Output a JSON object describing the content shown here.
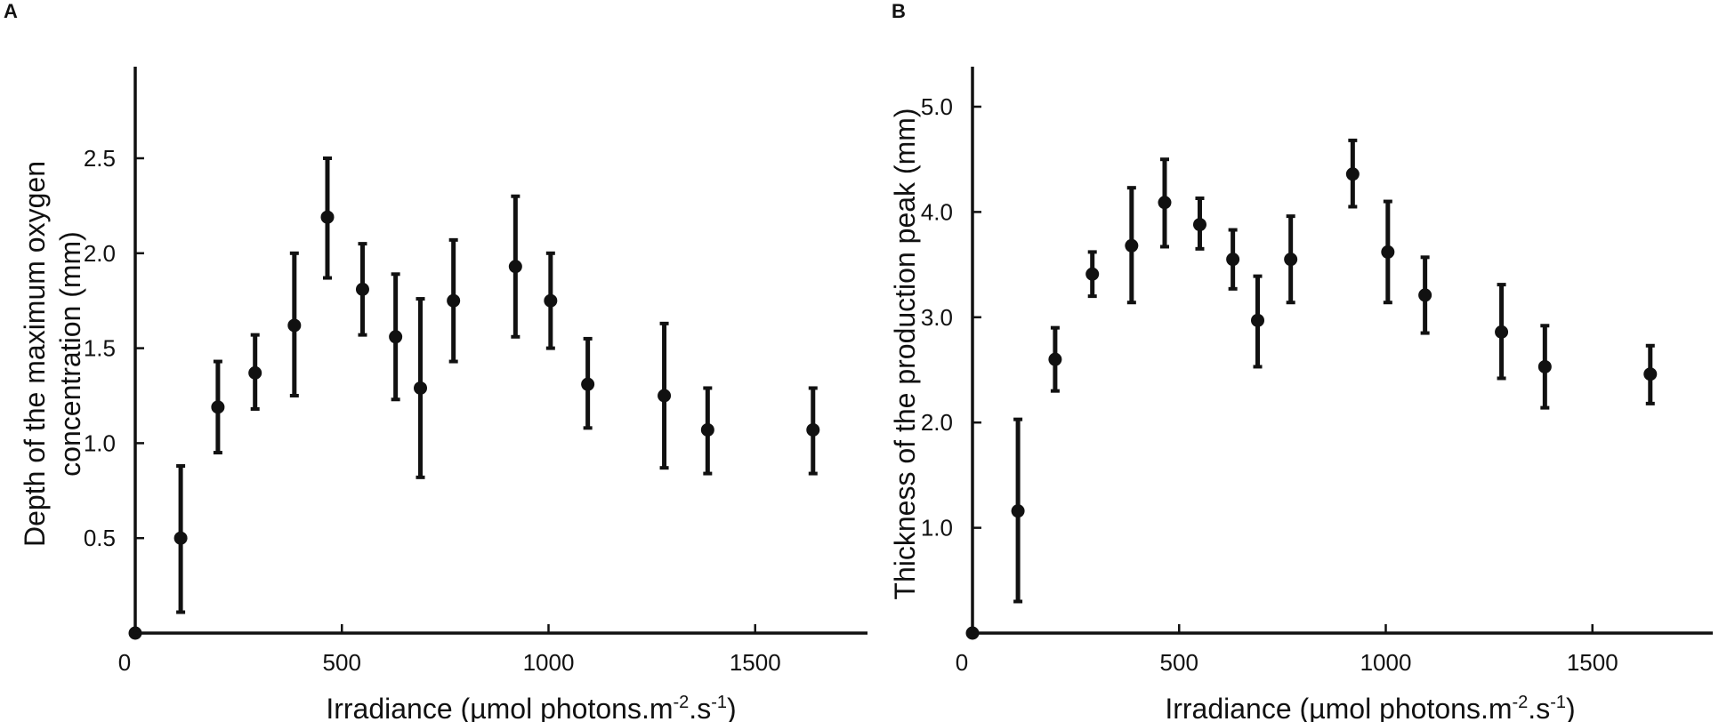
{
  "chart_data": [
    {
      "type": "scatter",
      "panel": "A",
      "xlabel": "Irradiance (µmol photons.m",
      "xlabel_sup1": "-2",
      "xlabel_mid": ".s",
      "xlabel_sup2": "-1",
      "xlabel_end": ")",
      "ylabel_line1": "Depth of the maximum oxygen",
      "ylabel_line2": "concentration (mm)",
      "xlim": [
        0,
        1800
      ],
      "ylim": [
        0,
        3.0
      ],
      "xticks": [
        0,
        500,
        1000,
        1500
      ],
      "xtick_labels": [
        "0",
        "500",
        "1000",
        "1500"
      ],
      "yticks": [
        0.5,
        1.0,
        1.5,
        2.0,
        2.5
      ],
      "ytick_labels": [
        "0.5",
        "1.0",
        "1.5",
        "2.0",
        "2.5"
      ],
      "points": [
        {
          "x": 0,
          "y": 0,
          "err": null
        },
        {
          "x": 110,
          "y": 0.5,
          "err": [
            0.11,
            0.88
          ]
        },
        {
          "x": 200,
          "y": 1.19,
          "err": [
            0.95,
            1.43
          ]
        },
        {
          "x": 290,
          "y": 1.37,
          "err": [
            1.18,
            1.57
          ]
        },
        {
          "x": 385,
          "y": 1.62,
          "err": [
            1.25,
            2.0
          ]
        },
        {
          "x": 465,
          "y": 2.19,
          "err": [
            1.87,
            2.5
          ]
        },
        {
          "x": 550,
          "y": 1.81,
          "err": [
            1.57,
            2.05
          ]
        },
        {
          "x": 630,
          "y": 1.56,
          "err": [
            1.23,
            1.89
          ]
        },
        {
          "x": 690,
          "y": 1.29,
          "err": [
            0.82,
            1.76
          ]
        },
        {
          "x": 770,
          "y": 1.75,
          "err": [
            1.43,
            2.07
          ]
        },
        {
          "x": 920,
          "y": 1.93,
          "err": [
            1.56,
            2.3
          ]
        },
        {
          "x": 1005,
          "y": 1.75,
          "err": [
            1.5,
            2.0
          ]
        },
        {
          "x": 1095,
          "y": 1.31,
          "err": [
            1.08,
            1.55
          ]
        },
        {
          "x": 1280,
          "y": 1.25,
          "err": [
            0.87,
            1.63
          ]
        },
        {
          "x": 1385,
          "y": 1.07,
          "err": [
            0.84,
            1.29
          ]
        },
        {
          "x": 1640,
          "y": 1.07,
          "err": [
            0.84,
            1.29
          ]
        }
      ]
    },
    {
      "type": "scatter",
      "panel": "B",
      "xlabel": "Irradiance (µmol photons.m",
      "xlabel_sup1": "-2",
      "xlabel_mid": ".s",
      "xlabel_sup2": "-1",
      "xlabel_end": ")",
      "ylabel_line1": "Thickness of the production peak (mm)",
      "xlim": [
        0,
        1800
      ],
      "ylim": [
        0,
        5.35
      ],
      "xticks": [
        0,
        500,
        1000,
        1500
      ],
      "xtick_labels": [
        "0",
        "500",
        "1000",
        "1500"
      ],
      "yticks": [
        1.0,
        2.0,
        3.0,
        4.0,
        5.0
      ],
      "ytick_labels": [
        "1.0",
        "2.0",
        "3.0",
        "4.0",
        "5.0"
      ],
      "points": [
        {
          "x": 0,
          "y": 0,
          "err": null
        },
        {
          "x": 110,
          "y": 1.16,
          "err": [
            0.3,
            2.03
          ]
        },
        {
          "x": 200,
          "y": 2.6,
          "err": [
            2.3,
            2.9
          ]
        },
        {
          "x": 290,
          "y": 3.41,
          "err": [
            3.2,
            3.62
          ]
        },
        {
          "x": 385,
          "y": 3.68,
          "err": [
            3.14,
            4.23
          ]
        },
        {
          "x": 465,
          "y": 4.09,
          "err": [
            3.67,
            4.5
          ]
        },
        {
          "x": 550,
          "y": 3.88,
          "err": [
            3.65,
            4.13
          ]
        },
        {
          "x": 630,
          "y": 3.55,
          "err": [
            3.27,
            3.83
          ]
        },
        {
          "x": 690,
          "y": 2.97,
          "err": [
            2.53,
            3.39
          ]
        },
        {
          "x": 770,
          "y": 3.55,
          "err": [
            3.14,
            3.96
          ]
        },
        {
          "x": 920,
          "y": 4.36,
          "err": [
            4.05,
            4.68
          ]
        },
        {
          "x": 1005,
          "y": 3.62,
          "err": [
            3.14,
            4.1
          ]
        },
        {
          "x": 1095,
          "y": 3.21,
          "err": [
            2.85,
            3.57
          ]
        },
        {
          "x": 1280,
          "y": 2.86,
          "err": [
            2.42,
            3.31
          ]
        },
        {
          "x": 1385,
          "y": 2.53,
          "err": [
            2.14,
            2.92
          ]
        },
        {
          "x": 1640,
          "y": 2.46,
          "err": [
            2.18,
            2.73
          ]
        }
      ]
    }
  ]
}
